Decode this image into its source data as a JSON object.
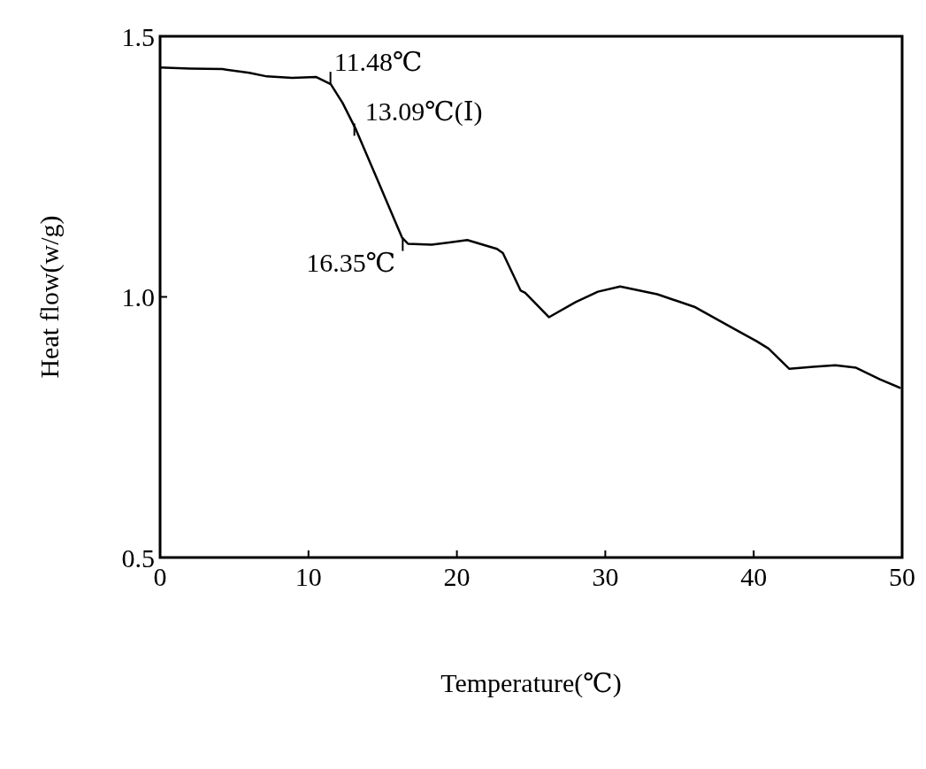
{
  "chart_data": {
    "type": "line",
    "xlabel": "Temperature(℃)",
    "ylabel": "Heat flow(w/g)",
    "x": [
      0,
      2,
      4.2,
      6,
      7.2,
      8.9,
      10.5,
      11.5,
      12.3,
      13.2,
      14.7,
      16.3,
      16.7,
      18.3,
      20.7,
      22.7,
      23.1,
      24.3,
      24.6,
      26.2,
      28,
      29.5,
      31,
      33.5,
      36,
      38.6,
      40.2,
      41,
      42.4,
      44,
      45.5,
      46.9,
      48.5,
      49.9
    ],
    "series": [
      {
        "color": "#000000",
        "values": [
          1.44,
          1.438,
          1.437,
          1.43,
          1.423,
          1.42,
          1.422,
          1.408,
          1.372,
          1.321,
          1.221,
          1.114,
          1.102,
          1.1,
          1.109,
          1.092,
          1.084,
          1.012,
          1.008,
          0.961,
          0.99,
          1.01,
          1.02,
          1.005,
          0.981,
          0.94,
          0.915,
          0.901,
          0.862,
          0.866,
          0.869,
          0.864,
          0.842,
          0.825
        ]
      }
    ],
    "xlim": [
      0,
      50
    ],
    "xticks": [
      0,
      10,
      20,
      30,
      40,
      50
    ],
    "ylim": [
      0.5,
      1.5
    ],
    "yticks": [
      {
        "value": 0.5,
        "label": "0.5"
      },
      {
        "value": 1,
        "label": "1.0"
      },
      {
        "value": 1.5,
        "label": "1.5"
      }
    ],
    "grid": false,
    "annotations": [
      {
        "text": "11.48℃",
        "x": 11.48,
        "y": 1.42
      },
      {
        "text": "13.09℃(Ⅰ)",
        "x": 13.09,
        "y": 1.321
      },
      {
        "text": "16.35℃",
        "x": 16.35,
        "y": 1.1
      }
    ]
  }
}
